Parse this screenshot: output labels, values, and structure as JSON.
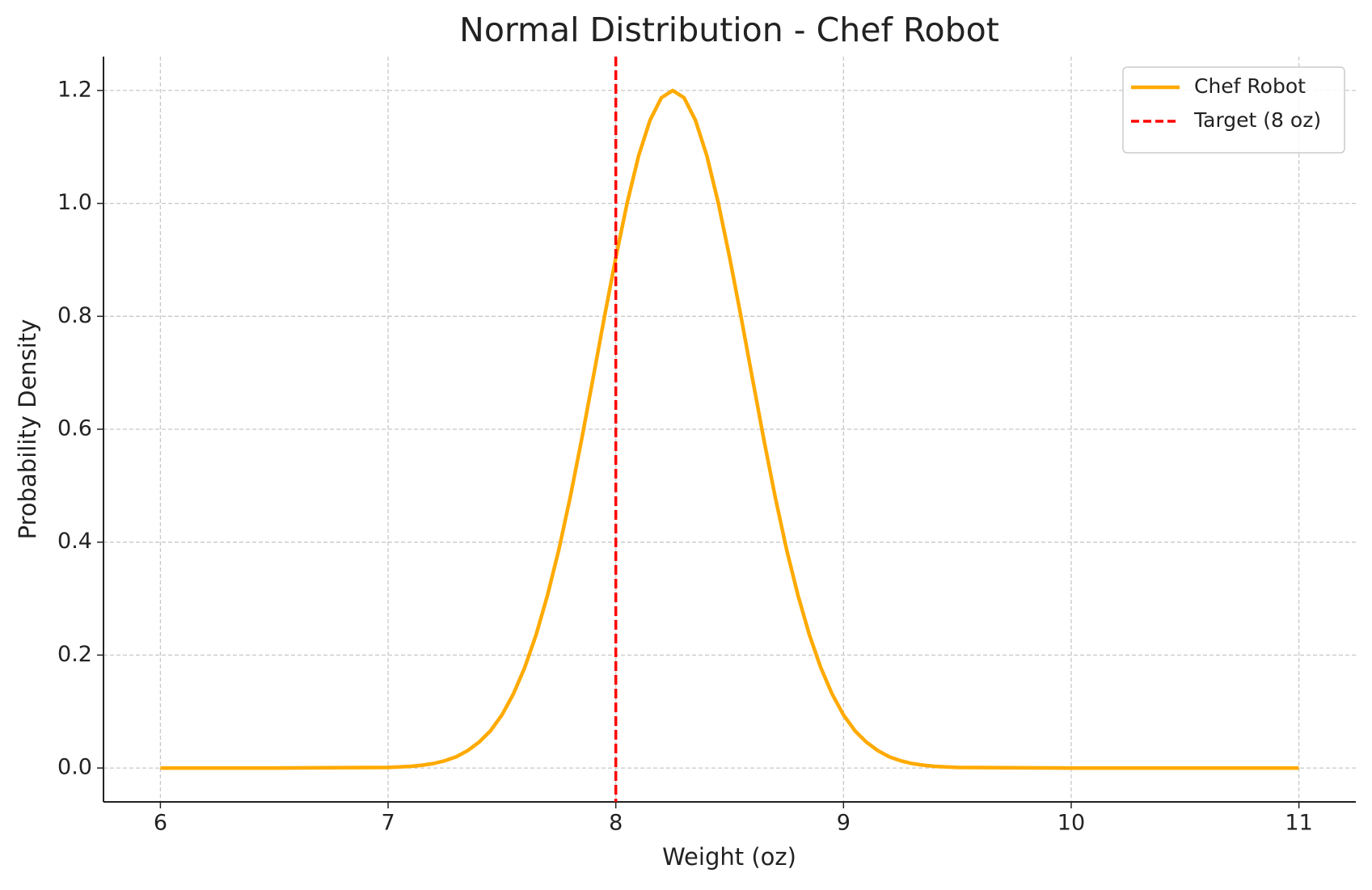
{
  "chart_data": {
    "type": "line",
    "title": "Normal Distribution - Chef Robot",
    "xlabel": "Weight (oz)",
    "ylabel": "Probability Density",
    "x": [
      6,
      6.5,
      7.0,
      7.05,
      7.1,
      7.15,
      7.2,
      7.25,
      7.3,
      7.35,
      7.4,
      7.45,
      7.5,
      7.55,
      7.6,
      7.65,
      7.7,
      7.75,
      7.8,
      7.85,
      7.9,
      7.95,
      8.0,
      8.05,
      8.1,
      8.15,
      8.2,
      8.25,
      8.3,
      8.35,
      8.4,
      8.45,
      8.5,
      8.55,
      8.6,
      8.65,
      8.7,
      8.75,
      8.8,
      8.85,
      8.9,
      8.95,
      9.0,
      9.05,
      9.1,
      9.15,
      9.2,
      9.25,
      9.3,
      9.35,
      9.4,
      9.45,
      9.5,
      10,
      10.5,
      11
    ],
    "series": [
      {
        "name": "Chef Robot",
        "color": "#ffaa00",
        "values": [
          0,
          0,
          0.001,
          0.002,
          0.003,
          0.005,
          0.008,
          0.013,
          0.02,
          0.031,
          0.046,
          0.066,
          0.094,
          0.131,
          0.178,
          0.236,
          0.306,
          0.387,
          0.48,
          0.582,
          0.69,
          0.799,
          0.904,
          1.001,
          1.084,
          1.147,
          1.187,
          1.2,
          1.187,
          1.147,
          1.084,
          1.001,
          0.904,
          0.799,
          0.69,
          0.582,
          0.48,
          0.387,
          0.306,
          0.236,
          0.178,
          0.131,
          0.094,
          0.066,
          0.046,
          0.031,
          0.02,
          0.013,
          0.008,
          0.005,
          0.003,
          0.002,
          0.001,
          0,
          0,
          0
        ]
      }
    ],
    "vline": {
      "x": 8,
      "label": "Target (8 oz)",
      "color": "#ff0000"
    },
    "xlim": [
      5.75,
      11.25
    ],
    "xticks": [
      6,
      7,
      8,
      9,
      10,
      11
    ],
    "ylim": [
      -0.06,
      1.26
    ],
    "yticks": [
      {
        "value": 0,
        "label": "0.0"
      },
      {
        "value": 0.2,
        "label": "0.2"
      },
      {
        "value": 0.4,
        "label": "0.4"
      },
      {
        "value": 0.6,
        "label": "0.6"
      },
      {
        "value": 0.8,
        "label": "0.8"
      },
      {
        "value": 1,
        "label": "1.0"
      },
      {
        "value": 1.2,
        "label": "1.2"
      }
    ],
    "grid": true,
    "legend": "upper right"
  }
}
